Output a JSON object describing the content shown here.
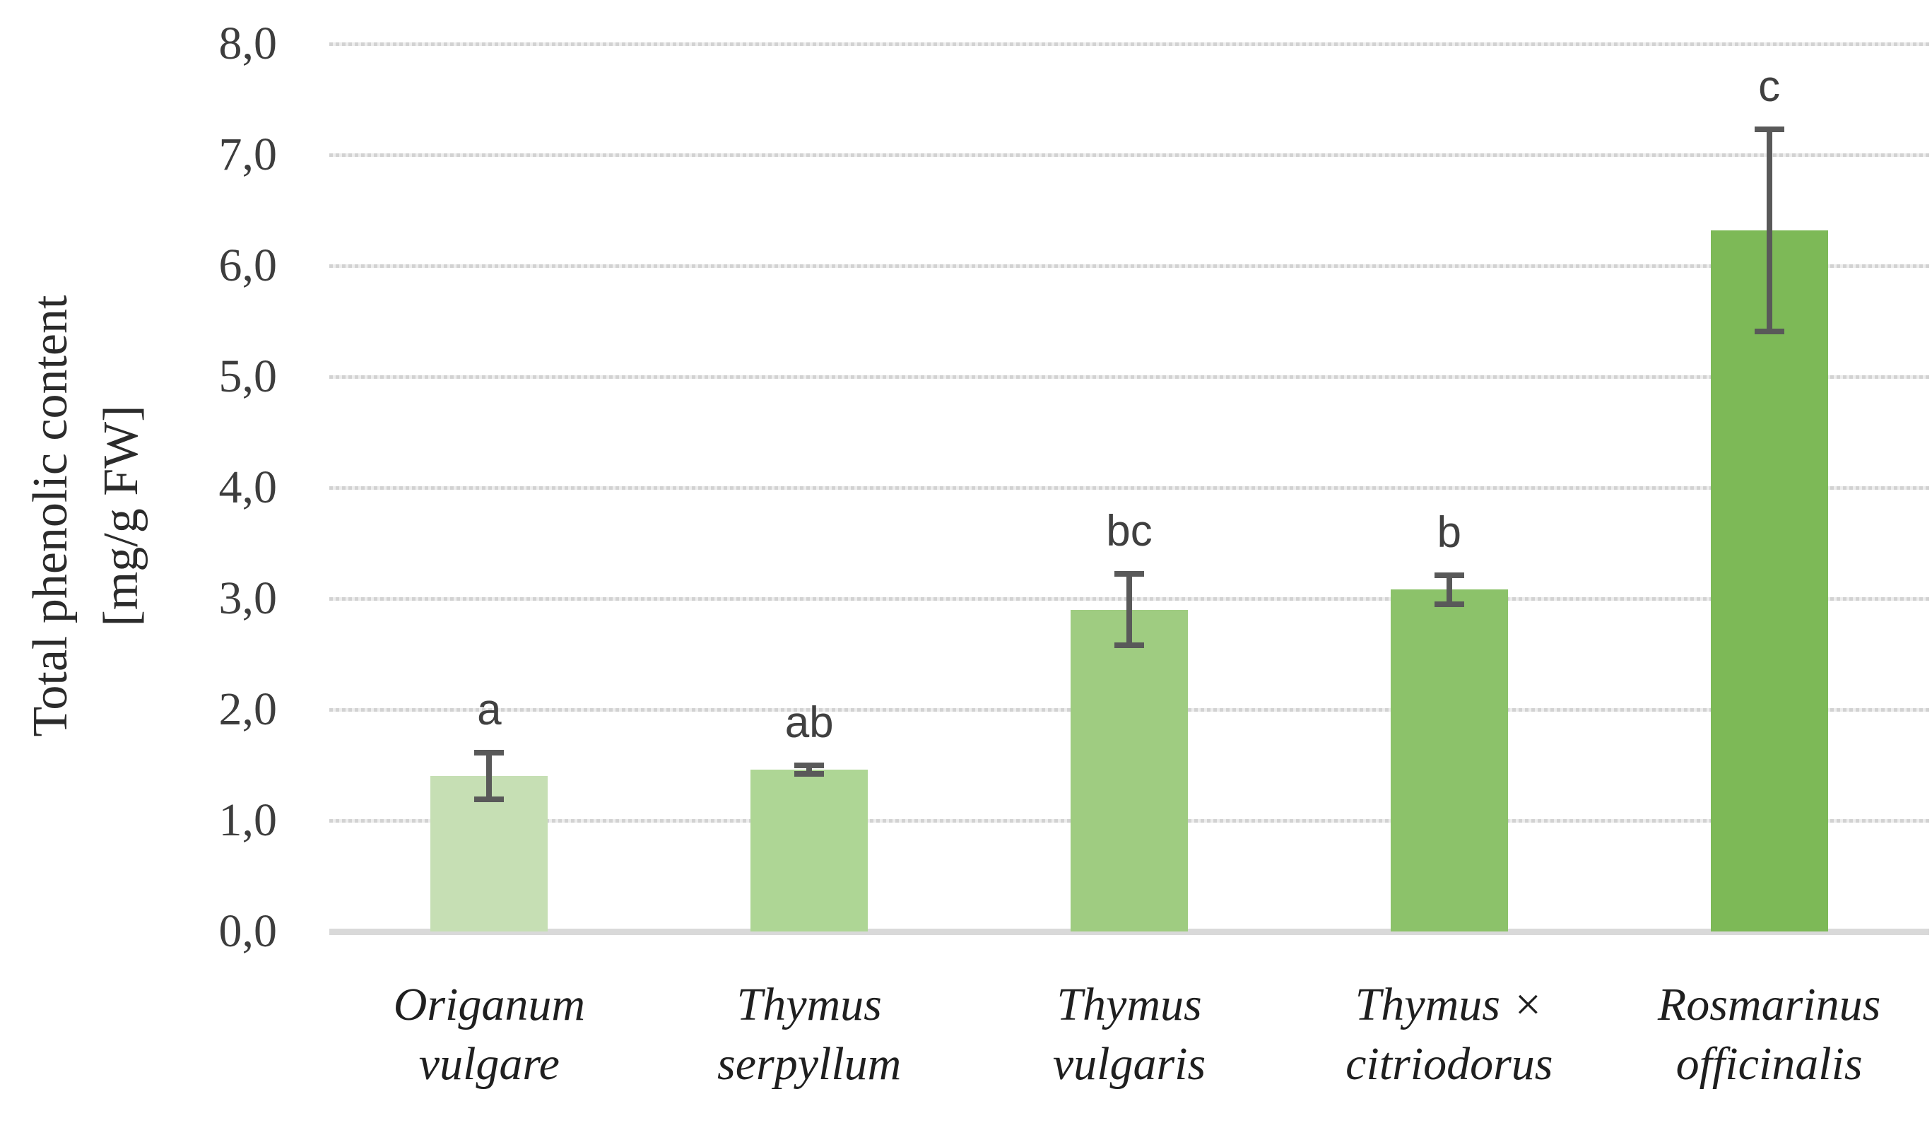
{
  "chart_data": {
    "type": "bar",
    "title": "",
    "ylabel": "Total phenolic content [mg/g FW]",
    "ylabel_display": "Total phenolic content\n[mg/g FW]",
    "xlabel": "",
    "ylim": [
      0,
      8
    ],
    "ytick_step": 1.0,
    "ytick_labels": [
      "0,0",
      "1,0",
      "2,0",
      "3,0",
      "4,0",
      "5,0",
      "6,0",
      "7,0",
      "8,0"
    ],
    "decimal_style": "comma",
    "grid": "horizontal-only",
    "legend": "none",
    "categories": [
      "Origanum vulgare",
      "Thymus serpyllum",
      "Thymus vulgaris",
      "Thymus × citriodorus",
      "Rosmarinus officinalis"
    ],
    "categories_display": [
      "Origanum\nvulgare",
      "Thymus\nserpyllum",
      "Thymus\nvulgaris",
      "Thymus ×\ncitriodorus",
      "Rosmarinus\nofficinalis"
    ],
    "values": [
      1.4,
      1.46,
      2.9,
      3.08,
      6.32
    ],
    "errors": [
      0.21,
      0.04,
      0.32,
      0.13,
      0.91
    ],
    "significance_letters": [
      "a",
      "ab",
      "bc",
      "b",
      "c"
    ],
    "bar_colors": [
      "#c6dfb4",
      "#aed695",
      "#9fcc81",
      "#8cc26a",
      "#7db957"
    ],
    "error_bar_color": "#595959",
    "gridline_color": "#d2d2d2",
    "axis_line_color": "#d9d9d9",
    "tick_text_color": "#3d3d3d",
    "letter_text_color": "#404040",
    "category_text_color": "#1f1f1f"
  }
}
